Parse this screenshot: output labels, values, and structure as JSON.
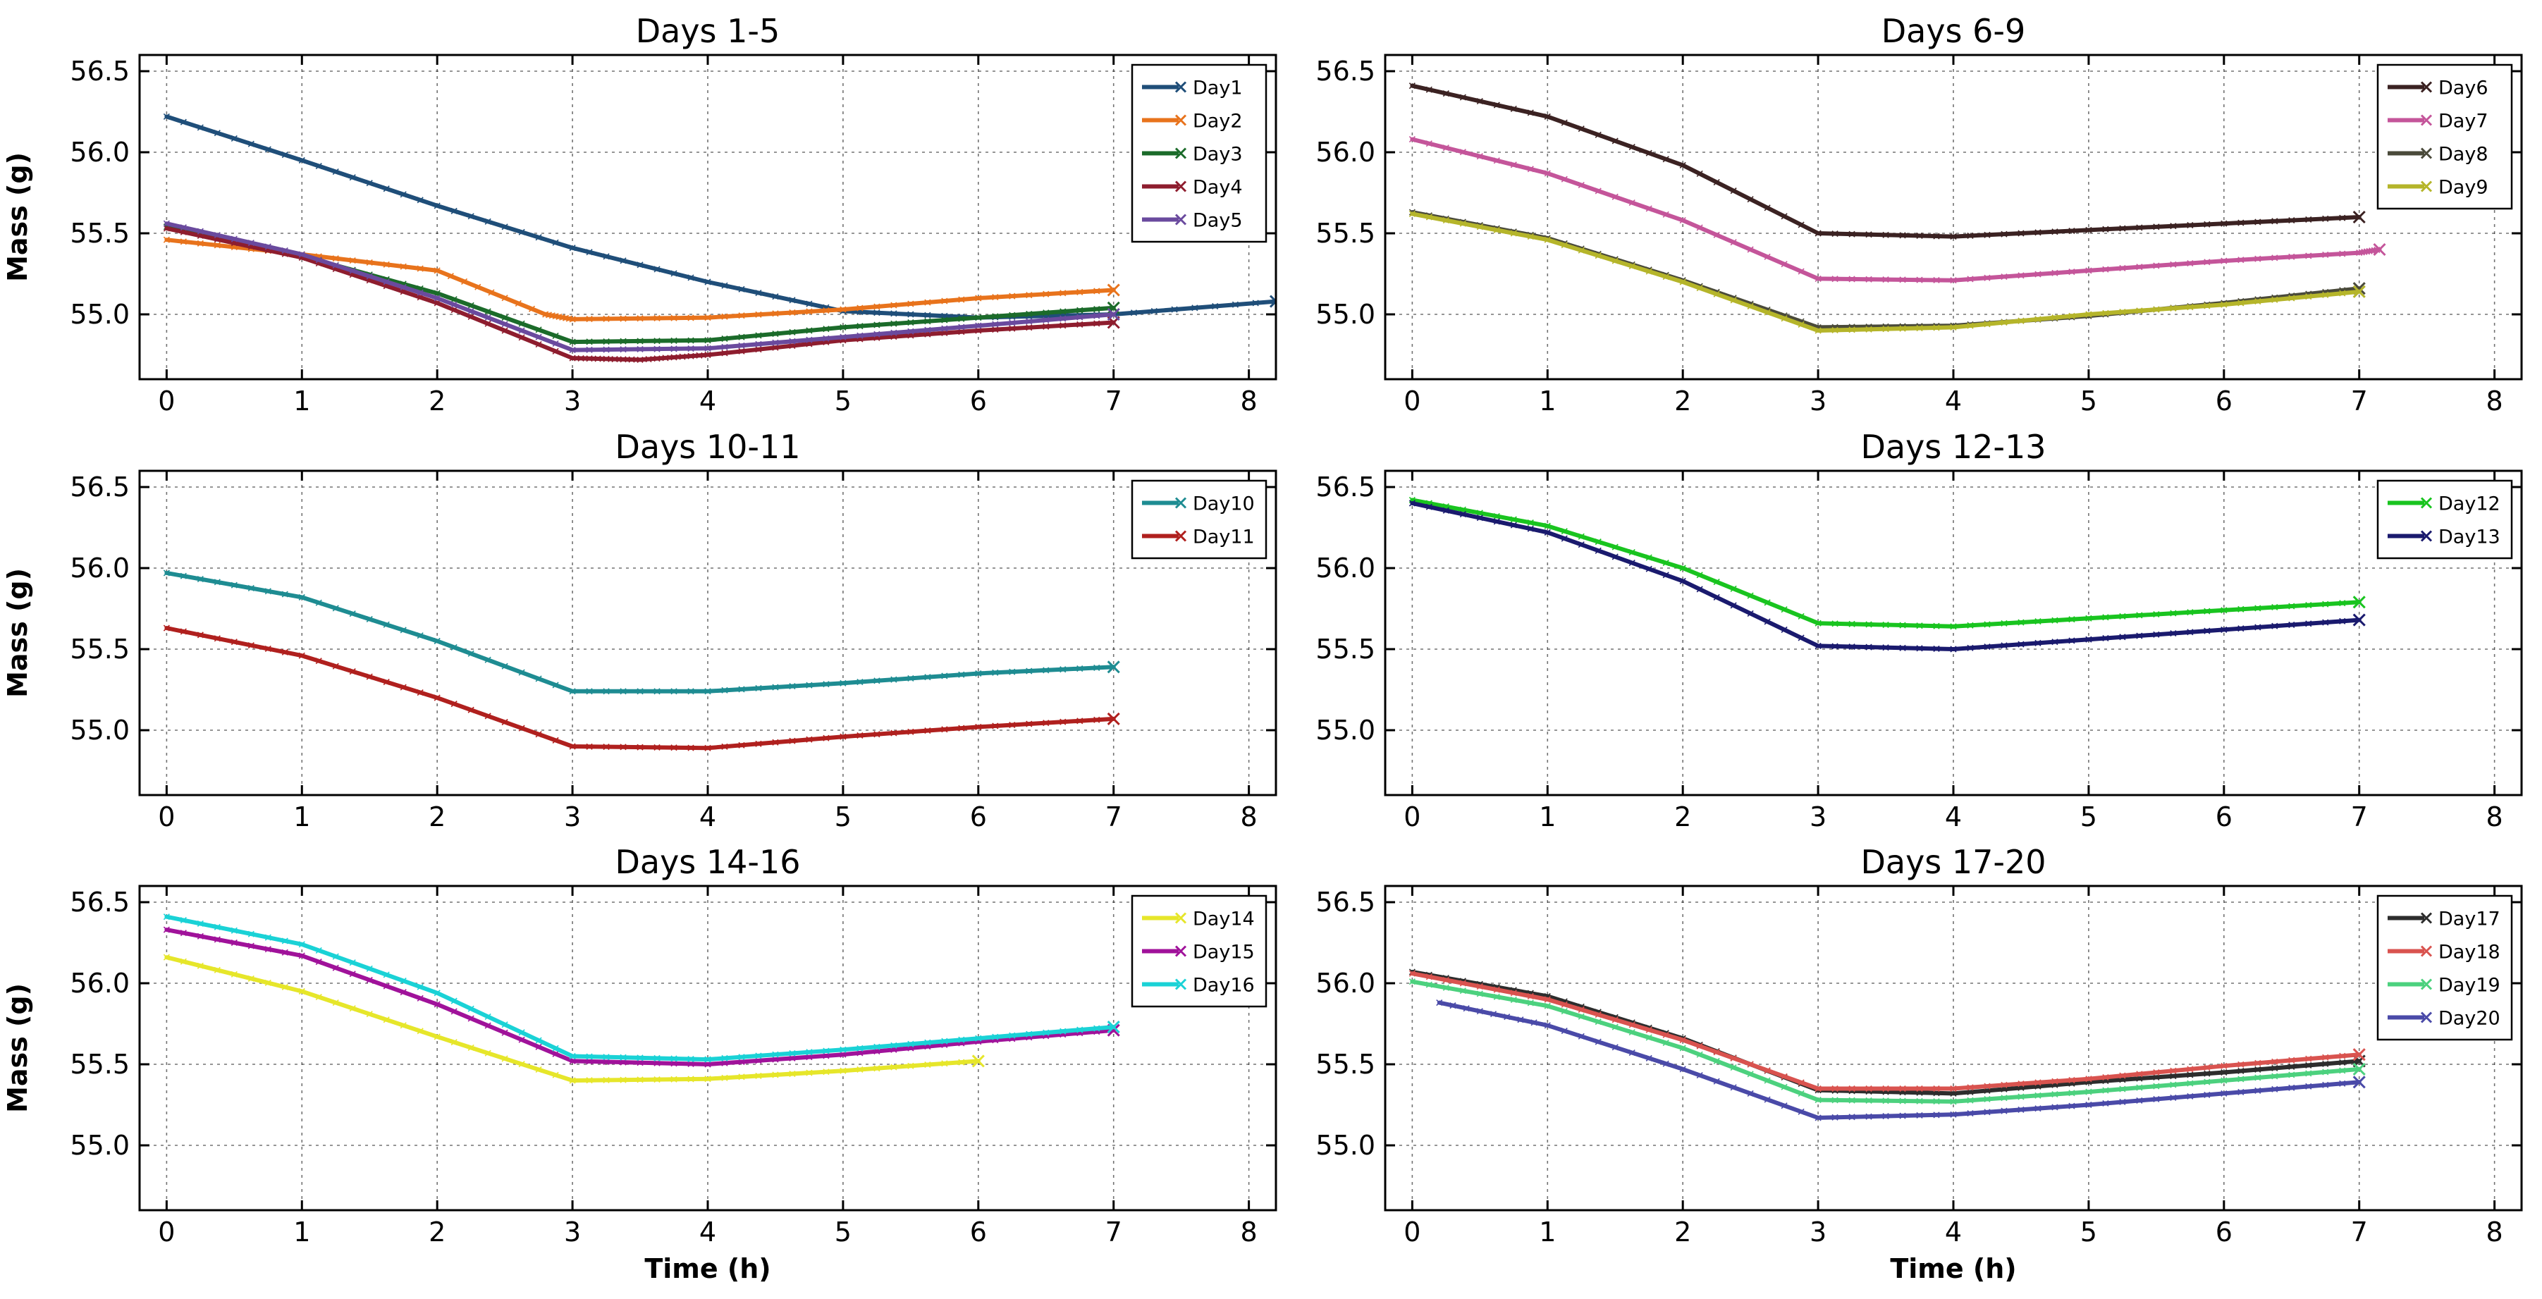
{
  "figure": {
    "xlabel": "Time (h)",
    "ylabel": "Mass (g)"
  },
  "chart_data": [
    {
      "type": "line",
      "title": "Days 1-5",
      "xlabel": "",
      "ylabel": "Mass (g)",
      "xlim": [
        -0.2,
        8.2
      ],
      "ylim": [
        54.6,
        56.6
      ],
      "xticks": [
        "0",
        "1",
        "2",
        "3",
        "4",
        "5",
        "6",
        "7",
        "8"
      ],
      "yticks": [
        "55.0",
        "55.5",
        "56.0",
        "56.5"
      ],
      "grid": true,
      "legend_position": "top-right",
      "series": [
        {
          "name": "Day1",
          "color": "#1f4e79",
          "x": [
            0,
            1,
            2,
            3,
            4,
            5,
            6,
            7,
            8.2
          ],
          "y": [
            56.22,
            55.95,
            55.67,
            55.41,
            55.2,
            55.02,
            54.98,
            55.0,
            55.08
          ]
        },
        {
          "name": "Day2",
          "color": "#e8731c",
          "x": [
            0,
            1,
            2,
            2.8,
            3,
            4,
            5,
            6,
            7
          ],
          "y": [
            55.46,
            55.37,
            55.27,
            55.0,
            54.97,
            54.98,
            55.03,
            55.1,
            55.15
          ]
        },
        {
          "name": "Day3",
          "color": "#1b6b2a",
          "x": [
            0,
            1,
            2,
            3,
            4,
            5,
            6,
            7
          ],
          "y": [
            55.54,
            55.36,
            55.13,
            54.83,
            54.84,
            54.92,
            54.98,
            55.04
          ]
        },
        {
          "name": "Day4",
          "color": "#8e1d2e",
          "x": [
            0,
            1,
            2,
            3,
            3.5,
            4,
            5,
            6,
            7
          ],
          "y": [
            55.53,
            55.35,
            55.07,
            54.73,
            54.72,
            54.75,
            54.84,
            54.9,
            54.95
          ]
        },
        {
          "name": "Day5",
          "color": "#6a4a9e",
          "x": [
            0,
            1,
            2,
            3,
            4,
            5,
            6,
            7
          ],
          "y": [
            55.56,
            55.37,
            55.1,
            54.78,
            54.79,
            54.86,
            54.93,
            55.0
          ]
        }
      ]
    },
    {
      "type": "line",
      "title": "Days 6-9",
      "xlabel": "",
      "ylabel": "",
      "xlim": [
        -0.2,
        8.2
      ],
      "ylim": [
        54.6,
        56.6
      ],
      "xticks": [
        "0",
        "1",
        "2",
        "3",
        "4",
        "5",
        "6",
        "7",
        "8"
      ],
      "yticks": [
        "55.0",
        "55.5",
        "56.0",
        "56.5"
      ],
      "grid": true,
      "legend_position": "top-right",
      "series": [
        {
          "name": "Day6",
          "color": "#3b2222",
          "x": [
            0,
            1,
            2,
            3,
            4,
            5,
            6,
            7
          ],
          "y": [
            56.41,
            56.22,
            55.92,
            55.5,
            55.48,
            55.52,
            55.56,
            55.6
          ]
        },
        {
          "name": "Day7",
          "color": "#c4559a",
          "x": [
            0,
            1,
            2,
            3,
            4,
            5,
            6,
            7,
            7.15
          ],
          "y": [
            56.08,
            55.87,
            55.58,
            55.22,
            55.21,
            55.27,
            55.33,
            55.38,
            55.4
          ]
        },
        {
          "name": "Day8",
          "color": "#4a4a3a",
          "x": [
            0,
            1,
            2,
            3,
            4,
            5,
            6,
            7
          ],
          "y": [
            55.63,
            55.47,
            55.21,
            54.92,
            54.93,
            54.99,
            55.07,
            55.16
          ]
        },
        {
          "name": "Day9",
          "color": "#b5b52a",
          "x": [
            0,
            1,
            2,
            3,
            4,
            5,
            6,
            7
          ],
          "y": [
            55.62,
            55.46,
            55.2,
            54.9,
            54.92,
            55.0,
            55.06,
            55.14
          ]
        }
      ]
    },
    {
      "type": "line",
      "title": "Days 10-11",
      "xlabel": "",
      "ylabel": "Mass (g)",
      "xlim": [
        -0.2,
        8.2
      ],
      "ylim": [
        54.6,
        56.6
      ],
      "xticks": [
        "0",
        "1",
        "2",
        "3",
        "4",
        "5",
        "6",
        "7",
        "8"
      ],
      "yticks": [
        "55.0",
        "55.5",
        "56.0",
        "56.5"
      ],
      "grid": true,
      "legend_position": "top-right",
      "series": [
        {
          "name": "Day10",
          "color": "#1e8c92",
          "x": [
            0,
            1,
            2,
            3,
            4,
            5,
            6,
            7
          ],
          "y": [
            55.97,
            55.82,
            55.55,
            55.24,
            55.24,
            55.29,
            55.35,
            55.39
          ]
        },
        {
          "name": "Day11",
          "color": "#b0201e",
          "x": [
            0,
            1,
            2,
            3,
            4,
            5,
            6,
            7
          ],
          "y": [
            55.63,
            55.46,
            55.2,
            54.9,
            54.89,
            54.96,
            55.02,
            55.07
          ]
        }
      ]
    },
    {
      "type": "line",
      "title": "Days 12-13",
      "xlabel": "",
      "ylabel": "",
      "xlim": [
        -0.2,
        8.2
      ],
      "ylim": [
        54.6,
        56.6
      ],
      "xticks": [
        "0",
        "1",
        "2",
        "3",
        "4",
        "5",
        "6",
        "7",
        "8"
      ],
      "yticks": [
        "55.0",
        "55.5",
        "56.0",
        "56.5"
      ],
      "grid": true,
      "legend_position": "top-right",
      "series": [
        {
          "name": "Day12",
          "color": "#19c41f",
          "x": [
            0,
            1,
            2,
            3,
            4,
            5,
            6,
            7
          ],
          "y": [
            56.42,
            56.26,
            56.0,
            55.66,
            55.64,
            55.69,
            55.74,
            55.79
          ]
        },
        {
          "name": "Day13",
          "color": "#1a1a6e",
          "x": [
            0,
            1,
            2,
            3,
            4,
            5,
            6,
            7
          ],
          "y": [
            56.4,
            56.22,
            55.92,
            55.52,
            55.5,
            55.56,
            55.62,
            55.68
          ]
        }
      ]
    },
    {
      "type": "line",
      "title": "Days 14-16",
      "xlabel": "Time (h)",
      "ylabel": "Mass (g)",
      "xlim": [
        -0.2,
        8.2
      ],
      "ylim": [
        54.6,
        56.6
      ],
      "xticks": [
        "0",
        "1",
        "2",
        "3",
        "4",
        "5",
        "6",
        "7",
        "8"
      ],
      "yticks": [
        "55.0",
        "55.5",
        "56.0",
        "56.5"
      ],
      "grid": true,
      "legend_position": "top-right",
      "series": [
        {
          "name": "Day14",
          "color": "#e6e62a",
          "x": [
            0,
            1,
            2,
            3,
            4,
            5,
            6
          ],
          "y": [
            56.16,
            55.95,
            55.67,
            55.4,
            55.41,
            55.46,
            55.52
          ]
        },
        {
          "name": "Day15",
          "color": "#a0129a",
          "x": [
            0,
            1,
            2,
            3,
            4,
            5,
            6,
            7
          ],
          "y": [
            56.33,
            56.17,
            55.87,
            55.52,
            55.5,
            55.56,
            55.64,
            55.71
          ]
        },
        {
          "name": "Day16",
          "color": "#1ad2d6",
          "x": [
            0,
            1,
            2,
            3,
            4,
            5,
            6,
            7
          ],
          "y": [
            56.41,
            56.24,
            55.94,
            55.55,
            55.53,
            55.59,
            55.66,
            55.73
          ]
        }
      ]
    },
    {
      "type": "line",
      "title": "Days 17-20",
      "xlabel": "Time (h)",
      "ylabel": "",
      "xlim": [
        -0.2,
        8.2
      ],
      "ylim": [
        54.6,
        56.6
      ],
      "xticks": [
        "0",
        "1",
        "2",
        "3",
        "4",
        "5",
        "6",
        "7",
        "8"
      ],
      "yticks": [
        "55.0",
        "55.5",
        "56.0",
        "56.5"
      ],
      "grid": true,
      "legend_position": "top-right",
      "series": [
        {
          "name": "Day17",
          "color": "#2d2d2d",
          "x": [
            0,
            1,
            2,
            3,
            4,
            5,
            6,
            7
          ],
          "y": [
            56.07,
            55.92,
            55.66,
            55.34,
            55.32,
            55.39,
            55.45,
            55.52
          ]
        },
        {
          "name": "Day18",
          "color": "#d9534f",
          "x": [
            0,
            1,
            2,
            3,
            4,
            5,
            6,
            7
          ],
          "y": [
            56.06,
            55.9,
            55.65,
            55.35,
            55.35,
            55.41,
            55.49,
            55.56
          ]
        },
        {
          "name": "Day19",
          "color": "#4cd17e",
          "x": [
            0,
            1,
            2,
            3,
            4,
            5,
            6,
            7
          ],
          "y": [
            56.01,
            55.86,
            55.6,
            55.28,
            55.27,
            55.33,
            55.4,
            55.47
          ]
        },
        {
          "name": "Day20",
          "color": "#4a4aa8",
          "x": [
            0.2,
            1,
            2,
            3,
            4,
            5,
            6,
            7
          ],
          "y": [
            55.88,
            55.74,
            55.47,
            55.17,
            55.19,
            55.25,
            55.32,
            55.39
          ]
        }
      ]
    }
  ]
}
